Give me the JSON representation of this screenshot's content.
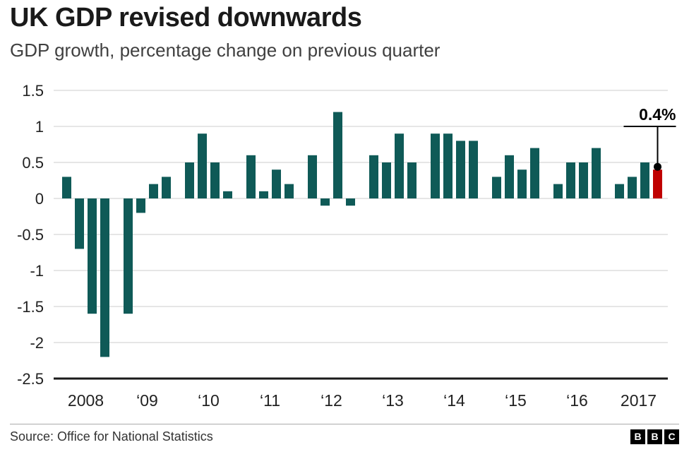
{
  "header": {
    "title": "UK GDP revised downwards",
    "subtitle": "GDP growth, percentage change on previous quarter"
  },
  "footer": {
    "source": "Source: Office for National Statistics",
    "logo_letters": [
      "B",
      "B",
      "C"
    ]
  },
  "chart_data": {
    "type": "bar",
    "title": "UK GDP revised downwards",
    "subtitle": "GDP growth, percentage change on previous quarter",
    "xlabel": "",
    "ylabel": "",
    "ylim": [
      -2.5,
      1.5
    ],
    "grid": true,
    "legend": false,
    "yticks": [
      {
        "value": 1.5,
        "label": "1.5"
      },
      {
        "value": 1,
        "label": "1"
      },
      {
        "value": 0.5,
        "label": "0.5"
      },
      {
        "value": 0,
        "label": "0"
      },
      {
        "value": -0.5,
        "label": "-0.5"
      },
      {
        "value": -1,
        "label": "-1"
      },
      {
        "value": -1.5,
        "label": "-1.5"
      },
      {
        "value": -2,
        "label": "-2"
      },
      {
        "value": -2.5,
        "label": "-2.5"
      }
    ],
    "x_group_labels": [
      "2008",
      "‘09",
      "‘10",
      "‘11",
      "‘12",
      "‘13",
      "‘14",
      "‘15",
      "‘16",
      "2017"
    ],
    "quarters_per_group": 4,
    "values": [
      0.3,
      -0.7,
      -1.6,
      -2.2,
      -1.6,
      -0.2,
      0.2,
      0.3,
      0.5,
      0.9,
      0.5,
      0.1,
      0.6,
      0.1,
      0.4,
      0.2,
      0.6,
      -0.1,
      1.2,
      -0.1,
      0.6,
      0.5,
      0.9,
      0.5,
      0.9,
      0.9,
      0.8,
      0.8,
      0.3,
      0.6,
      0.4,
      0.7,
      0.2,
      0.5,
      0.5,
      0.7,
      0.2,
      0.3,
      0.5,
      0.4
    ],
    "bar_color": "#0f5a57",
    "highlight_color": "#c00000",
    "highlight_index": 39,
    "annotation": {
      "label": "0.4%",
      "target_index": 39
    },
    "source": "Source: Office for National Statistics"
  }
}
